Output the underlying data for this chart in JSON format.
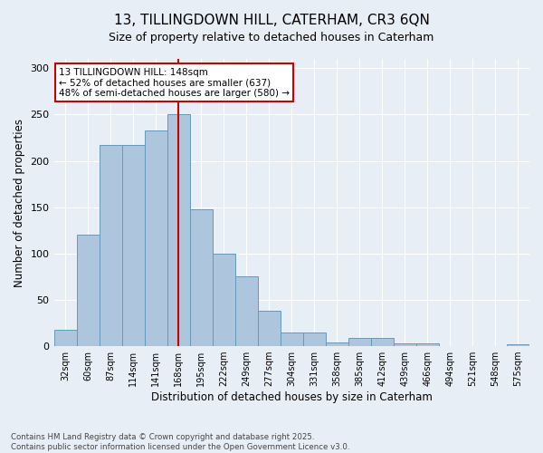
{
  "title": "13, TILLINGDOWN HILL, CATERHAM, CR3 6QN",
  "subtitle": "Size of property relative to detached houses in Caterham",
  "xlabel": "Distribution of detached houses by size in Caterham",
  "ylabel": "Number of detached properties",
  "categories": [
    "32sqm",
    "60sqm",
    "87sqm",
    "114sqm",
    "141sqm",
    "168sqm",
    "195sqm",
    "222sqm",
    "249sqm",
    "277sqm",
    "304sqm",
    "331sqm",
    "358sqm",
    "385sqm",
    "412sqm",
    "439sqm",
    "466sqm",
    "494sqm",
    "521sqm",
    "548sqm",
    "575sqm"
  ],
  "values": [
    18,
    120,
    217,
    217,
    233,
    250,
    148,
    100,
    75,
    38,
    15,
    15,
    4,
    9,
    9,
    3,
    3,
    0,
    0,
    0,
    2
  ],
  "bar_color": "#aec6dd",
  "bar_edge_color": "#6699bb",
  "property_line_x": 5.0,
  "annotation_text": "13 TILLINGDOWN HILL: 148sqm\n← 52% of detached houses are smaller (637)\n48% of semi-detached houses are larger (580) →",
  "annotation_box_color": "#ffffff",
  "annotation_box_edge": "#cc0000",
  "line_color": "#cc0000",
  "ylim": [
    0,
    310
  ],
  "yticks": [
    0,
    50,
    100,
    150,
    200,
    250,
    300
  ],
  "footer": "Contains HM Land Registry data © Crown copyright and database right 2025.\nContains public sector information licensed under the Open Government Licence v3.0.",
  "title_fontsize": 11,
  "bg_color": "#e8eef5",
  "grid_color": "#ffffff"
}
